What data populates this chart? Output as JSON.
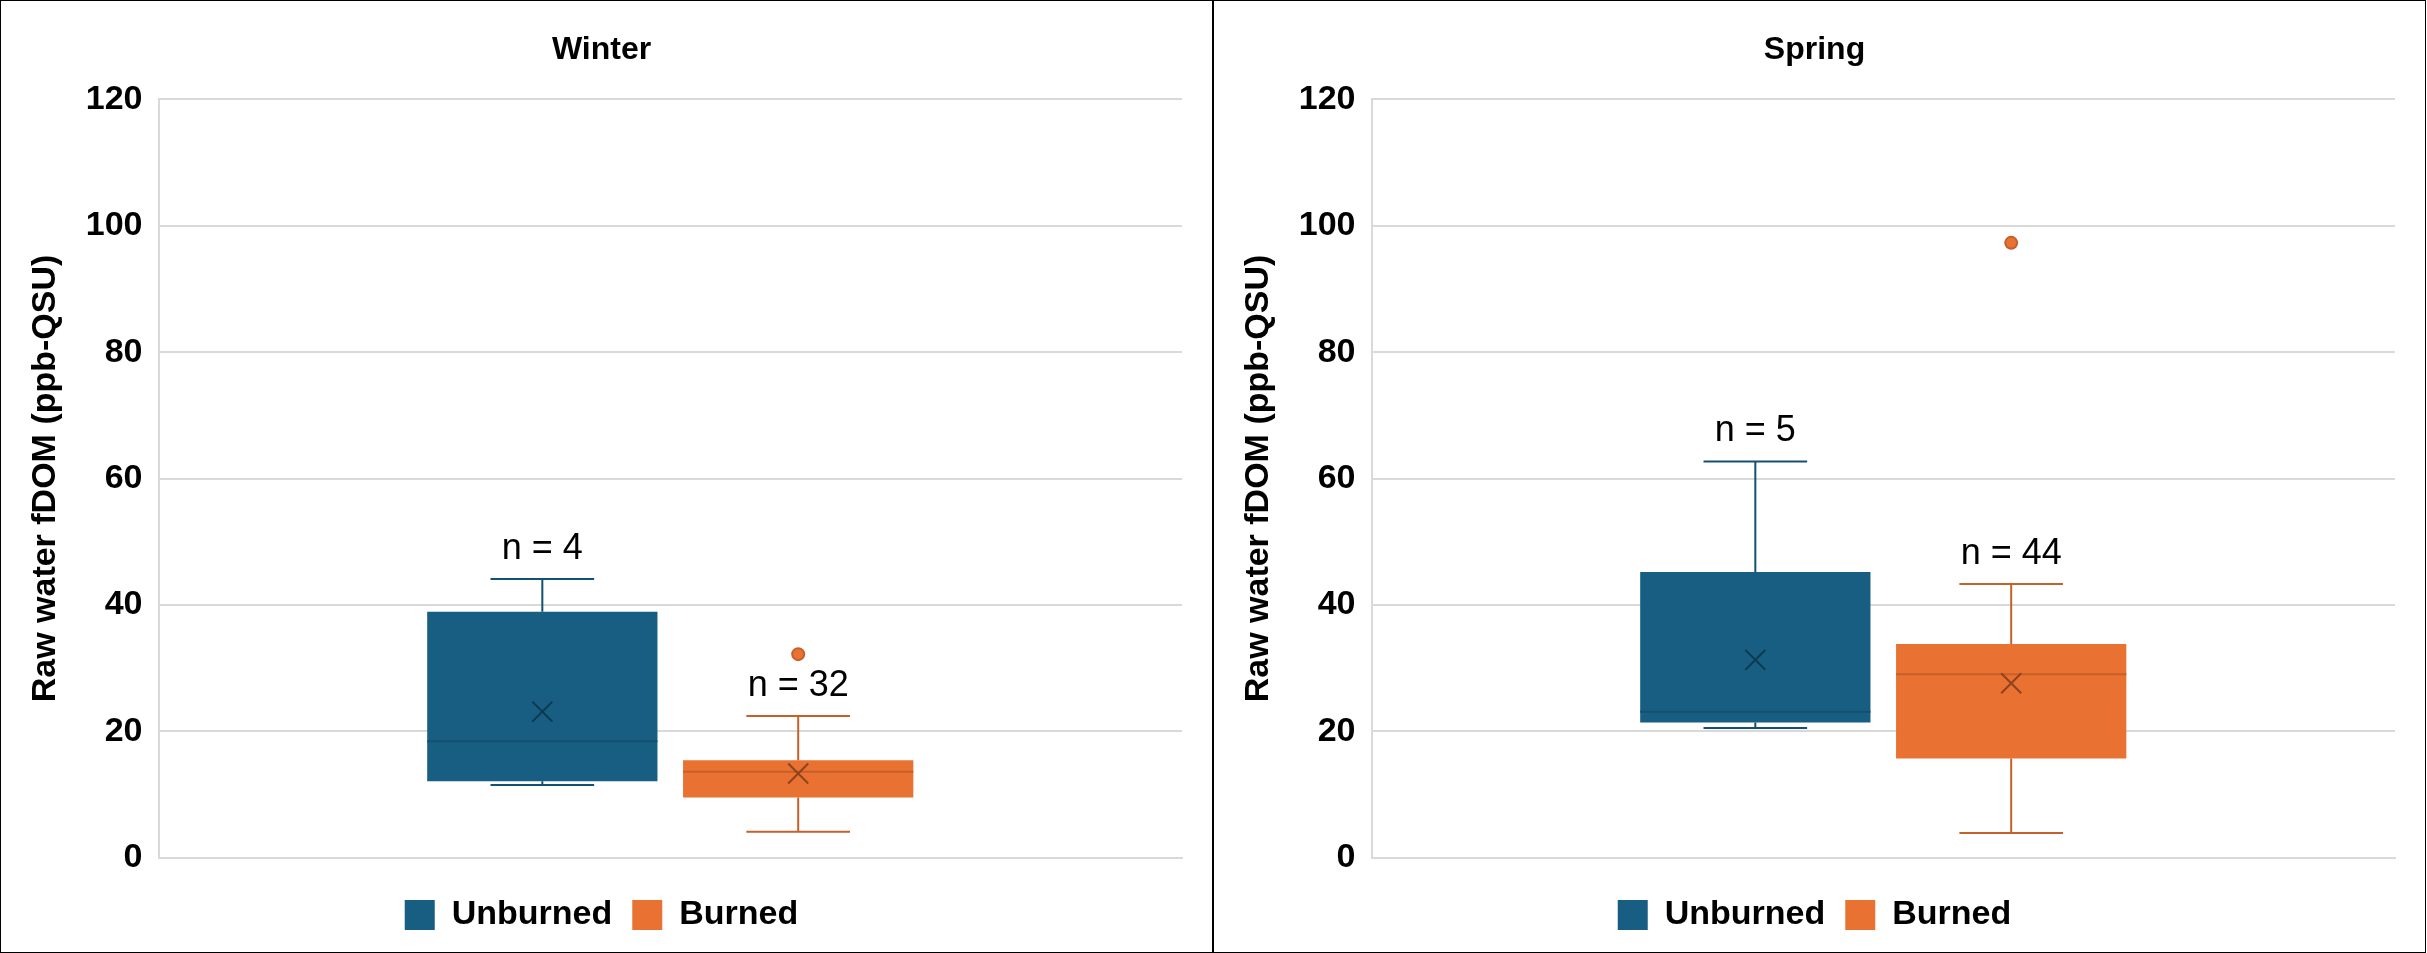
{
  "chart_data": [
    {
      "type": "box",
      "title": "Winter",
      "ylabel": "Raw water fDOM (ppb-QSU)",
      "categories": [
        null
      ],
      "ylim": [
        0,
        120
      ],
      "yticks": [
        0,
        20,
        40,
        60,
        80,
        100,
        120
      ],
      "grid": "y",
      "legend": "bottom",
      "annotations": [
        "n = 4",
        "n = 32"
      ],
      "series": [
        {
          "name": "Unburned",
          "color": "#175e82",
          "boxes": [
            {
              "low": 11.5,
              "q1": 12.1,
              "median": 18.4,
              "q3": 38.9,
              "high": 44.1,
              "mean": 23.1
            }
          ]
        },
        {
          "name": "Burned",
          "color": "#e97132",
          "boxes": [
            {
              "low": 4.1,
              "q1": 9.5,
              "median": 13.6,
              "q3": 15.4,
              "high": 22.4,
              "mean": 13.3,
              "outliers": [
                32.2
              ]
            }
          ]
        }
      ]
    },
    {
      "type": "box",
      "title": "Spring",
      "ylabel": "Raw water fDOM (ppb-QSU)",
      "categories": [
        null
      ],
      "ylim": [
        0,
        120
      ],
      "yticks": [
        0,
        20,
        40,
        60,
        80,
        100,
        120
      ],
      "grid": "y",
      "legend": "bottom",
      "annotations": [
        "n = 5",
        "n = 44"
      ],
      "series": [
        {
          "name": "Unburned",
          "color": "#175e82",
          "boxes": [
            {
              "low": 20.5,
              "q1": 21.4,
              "median": 23.1,
              "q3": 45.2,
              "high": 62.7,
              "mean": 31.3
            }
          ]
        },
        {
          "name": "Burned",
          "color": "#e97132",
          "boxes": [
            {
              "low": 3.9,
              "q1": 15.7,
              "median": 29.0,
              "q3": 33.8,
              "high": 43.3,
              "mean": 27.6,
              "outliers": [
                97.3
              ]
            }
          ]
        }
      ]
    }
  ]
}
